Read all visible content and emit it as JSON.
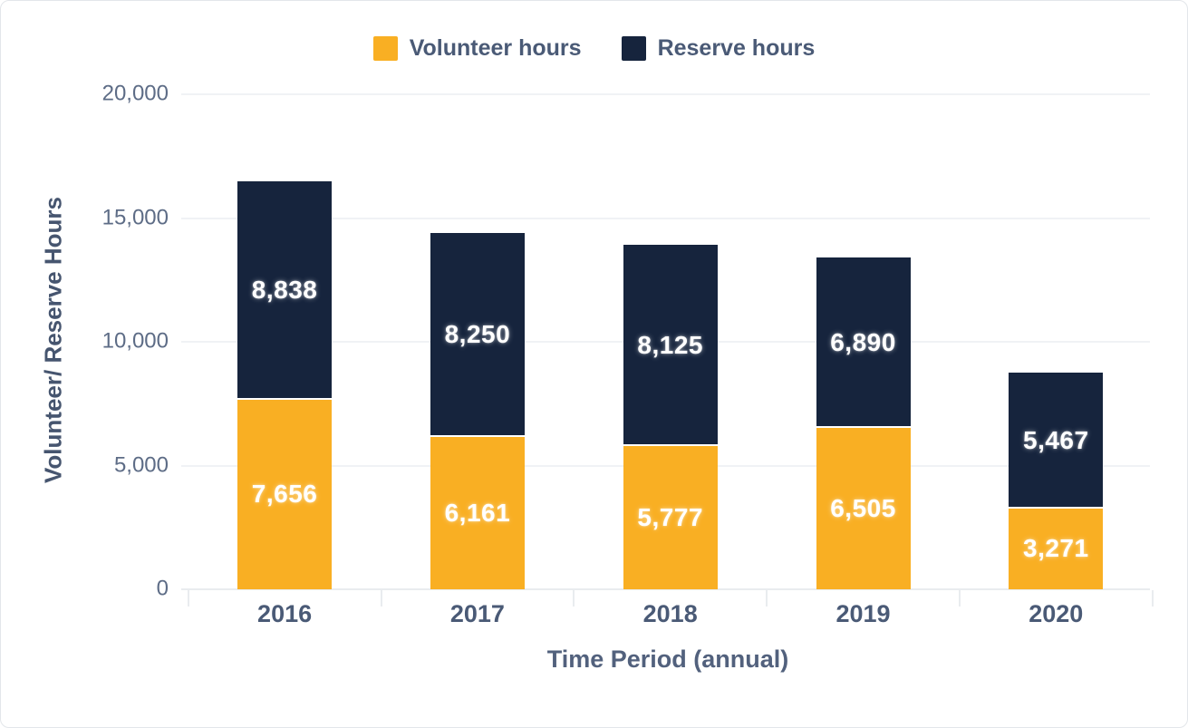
{
  "chart_data": {
    "type": "bar",
    "stacked": true,
    "title": "",
    "xlabel": "Time Period (annual)",
    "ylabel": "Volunteer/ Reserve Hours",
    "categories": [
      "2016",
      "2017",
      "2018",
      "2019",
      "2020"
    ],
    "series": [
      {
        "name": "Volunteer hours",
        "color": "#F9AF23",
        "values": [
          7656,
          6161,
          5777,
          6505,
          3271
        ]
      },
      {
        "name": "Reserve hours",
        "color": "#16243D",
        "values": [
          8838,
          8250,
          8125,
          6890,
          5467
        ]
      }
    ],
    "totals": [
      16494,
      14411,
      13902,
      13395,
      8738
    ],
    "y_ticks": [
      0,
      5000,
      10000,
      15000,
      20000
    ],
    "ylim": [
      0,
      20000
    ],
    "legend_position": "top",
    "grid": "horizontal",
    "bar_label_color": "#FFFFFF"
  },
  "colors": {
    "card_border": "#E3E6EA",
    "gridline": "#F0F2F5",
    "axis_line": "#E9ECEF",
    "tick_text": "#5D6C86",
    "category_text": "#4A5A76",
    "axis_title_text": "#52617D",
    "background": "#FFFFFF"
  }
}
